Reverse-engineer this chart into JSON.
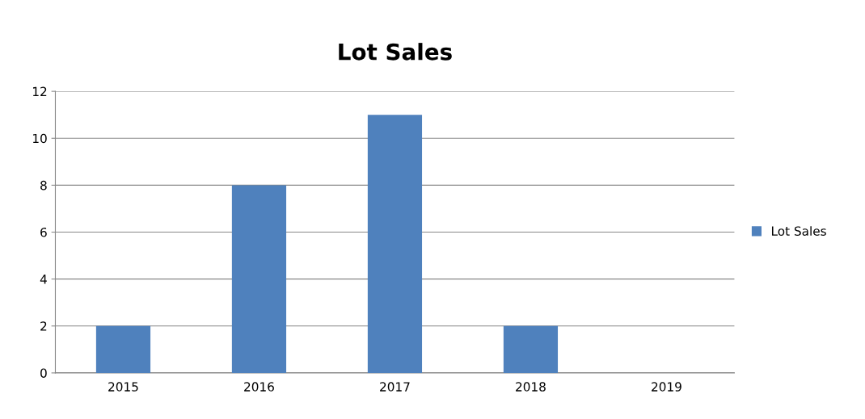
{
  "chart_data": {
    "type": "bar",
    "title": "Lot Sales",
    "categories": [
      "2015",
      "2016",
      "2017",
      "2018",
      "2019"
    ],
    "series": [
      {
        "name": "Lot Sales",
        "color": "#4f81bd",
        "values": [
          2,
          8,
          11,
          2,
          0
        ]
      }
    ],
    "ylim": [
      0,
      12
    ],
    "yticks": [
      0,
      2,
      4,
      6,
      8,
      10,
      12
    ],
    "grid": "y",
    "legend": "right"
  }
}
